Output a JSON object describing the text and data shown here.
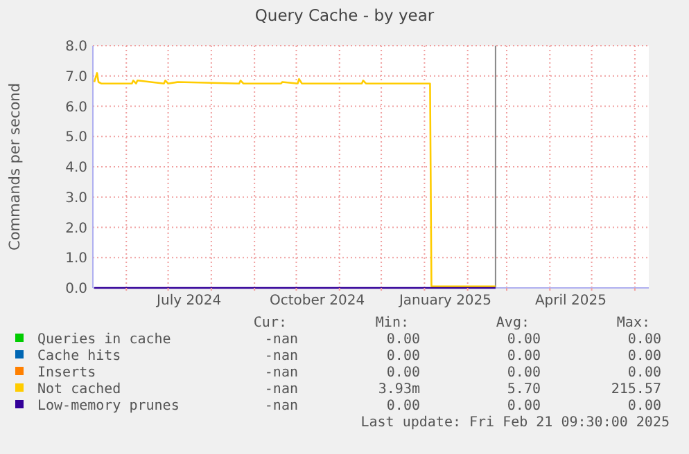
{
  "chart_data": {
    "type": "line",
    "title": "Query Cache - by year",
    "ylabel": "Commands per second",
    "xlim": [
      "2024-05-08",
      "2025-06-11"
    ],
    "xticks": [
      {
        "value": "2024-06-01",
        "label": null
      },
      {
        "value": "2024-07-01",
        "label": null
      },
      {
        "value": "2024-07-16",
        "label": "July 2024"
      },
      {
        "value": "2024-08-01",
        "label": null
      },
      {
        "value": "2024-09-01",
        "label": null
      },
      {
        "value": "2024-10-01",
        "label": null
      },
      {
        "value": "2024-10-16",
        "label": "October 2024"
      },
      {
        "value": "2024-11-01",
        "label": null
      },
      {
        "value": "2024-12-01",
        "label": null
      },
      {
        "value": "2025-01-01",
        "label": null
      },
      {
        "value": "2025-01-16",
        "label": "January 2025"
      },
      {
        "value": "2025-02-01",
        "label": null
      },
      {
        "value": "2025-03-01",
        "label": null
      },
      {
        "value": "2025-04-01",
        "label": null
      },
      {
        "value": "2025-04-16",
        "label": "April 2025"
      },
      {
        "value": "2025-05-01",
        "label": null
      },
      {
        "value": "2025-06-01",
        "label": null
      }
    ],
    "ylim": [
      0,
      8
    ],
    "yticks": [
      {
        "value": 0,
        "label": "0.0"
      },
      {
        "value": 1,
        "label": "1.0"
      },
      {
        "value": 2,
        "label": "2.0"
      },
      {
        "value": 3,
        "label": "3.0"
      },
      {
        "value": 4,
        "label": "4.0"
      },
      {
        "value": 5,
        "label": "5.0"
      },
      {
        "value": 6,
        "label": "6.0"
      },
      {
        "value": 7,
        "label": "7.0"
      },
      {
        "value": 8,
        "label": "8.0"
      }
    ],
    "grid": true,
    "legend": "bottom",
    "marker": "none",
    "line_style": "solid",
    "series": [
      {
        "name": "Queries in cache",
        "color": "#00cc00"
      },
      {
        "name": "Cache hits",
        "color": "#0066b3"
      },
      {
        "name": "Inserts",
        "color": "#ff8000"
      },
      {
        "name": "Not cached",
        "color": "#ffcc00",
        "x": [
          "2024-05-09",
          "2024-05-11",
          "2024-05-12",
          "2024-05-14",
          "2024-06-05",
          "2024-06-06",
          "2024-06-08",
          "2024-06-09",
          "2024-06-28",
          "2024-06-29",
          "2024-07-01",
          "2024-07-08",
          "2024-08-21",
          "2024-08-22",
          "2024-08-24",
          "2024-09-20",
          "2024-09-21",
          "2024-10-02",
          "2024-10-03",
          "2024-10-05",
          "2024-11-17",
          "2024-11-18",
          "2024-11-20",
          "2025-01-05",
          "2025-01-06",
          "2025-02-21"
        ],
        "values": [
          6.8,
          7.1,
          6.8,
          6.75,
          6.75,
          6.85,
          6.75,
          6.85,
          6.75,
          6.85,
          6.75,
          6.8,
          6.75,
          6.85,
          6.75,
          6.75,
          6.8,
          6.75,
          6.9,
          6.75,
          6.75,
          6.85,
          6.75,
          6.75,
          0.05,
          0.05
        ]
      },
      {
        "name": "Low-memory prunes",
        "color": "#330099",
        "x": [
          "2024-05-09",
          "2025-02-21"
        ],
        "values": [
          0,
          0
        ]
      }
    ],
    "ref_lines": [
      {
        "axis": "x",
        "value": "2025-02-21",
        "color": "#888888"
      }
    ],
    "annotations": [
      "Cur:",
      "Min:",
      "Avg:",
      "Max:",
      "-nan",
      "0.00",
      "0.00",
      "0.00",
      "-nan",
      "0.00",
      "0.00",
      "0.00",
      "-nan",
      "0.00",
      "0.00",
      "0.00",
      "-nan",
      "3.93m",
      "5.70",
      "215.57",
      "-nan",
      "0.00",
      "0.00",
      "0.00",
      "Last update: Fri Feb 21 09:30:00 2025"
    ]
  }
}
